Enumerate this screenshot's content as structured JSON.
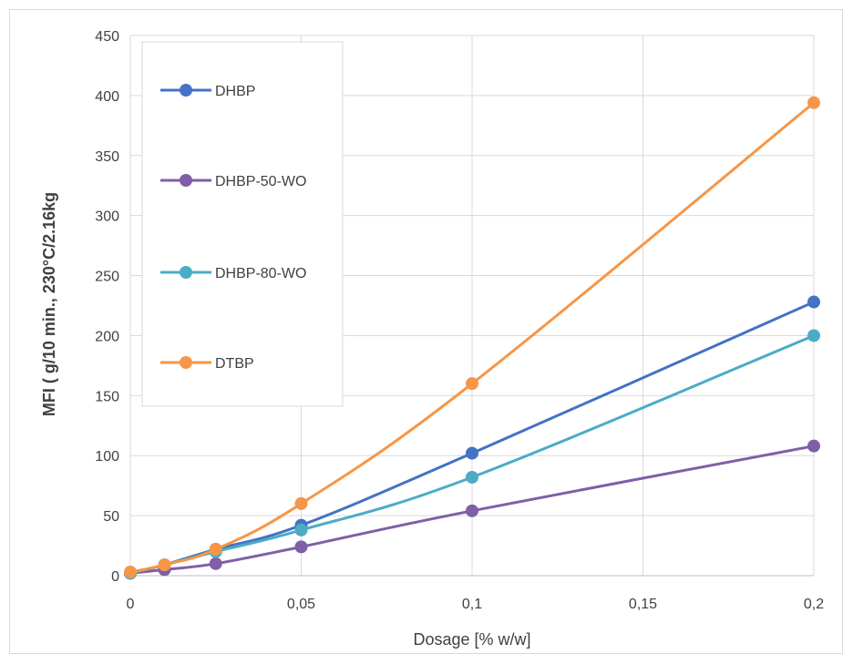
{
  "chart_data": {
    "type": "line",
    "title": "",
    "xlabel": "Dosage [% w/w]",
    "ylabel": "MFI ( g/10 min., 230°C/2.16kg",
    "xlim": [
      0,
      0.2
    ],
    "ylim": [
      0,
      450
    ],
    "x_ticks": [
      0,
      0.05,
      0.1,
      0.15,
      0.2
    ],
    "x_tick_labels": [
      "0",
      "0,05",
      "0,1",
      "0,15",
      "0,2"
    ],
    "y_ticks": [
      0,
      50,
      100,
      150,
      200,
      250,
      300,
      350,
      400,
      450
    ],
    "y_tick_labels": [
      "0",
      "50",
      "100",
      "150",
      "200",
      "250",
      "300",
      "350",
      "400",
      "450"
    ],
    "grid": true,
    "legend_position": "top-left",
    "x": [
      0,
      0.01,
      0.025,
      0.05,
      0.1,
      0.2
    ],
    "series": [
      {
        "name": "DHBP",
        "color": "#4472C4",
        "values": [
          2,
          9,
          22,
          42,
          102,
          228
        ]
      },
      {
        "name": "DHBP-50-WO",
        "color": "#7F5FA6",
        "values": [
          2,
          5,
          10,
          24,
          54,
          108
        ]
      },
      {
        "name": "DHBP-80-WO",
        "color": "#4BACC6",
        "values": [
          2,
          9,
          20,
          38,
          82,
          200
        ]
      },
      {
        "name": "DTBP",
        "color": "#F79646",
        "values": [
          3,
          9,
          22,
          60,
          160,
          394
        ]
      }
    ]
  }
}
